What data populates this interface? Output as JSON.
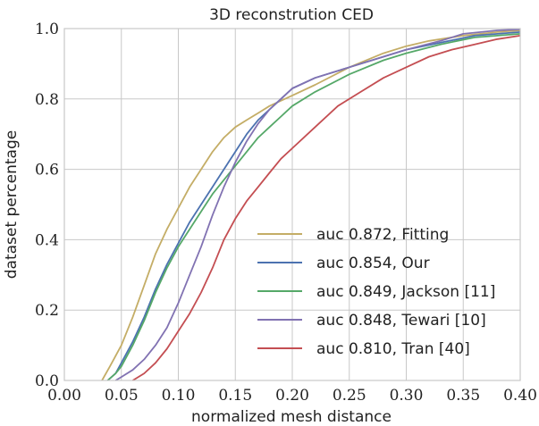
{
  "chart_data": {
    "type": "line",
    "title": "3D reconstrution CED",
    "xlabel": "normalized mesh distance",
    "ylabel": "dataset percentage",
    "xlim": [
      0.0,
      0.4
    ],
    "ylim": [
      0.0,
      1.0
    ],
    "xticks": [
      "0.00",
      "0.05",
      "0.10",
      "0.15",
      "0.20",
      "0.25",
      "0.30",
      "0.35",
      "0.40"
    ],
    "yticks": [
      "0.0",
      "0.2",
      "0.4",
      "0.6",
      "0.8",
      "1.0"
    ],
    "grid": true,
    "legend_position": "lower-right",
    "series": [
      {
        "name": "auc 0.872, Fitting",
        "color": "#c4ad66",
        "x": [
          0.033,
          0.04,
          0.05,
          0.06,
          0.07,
          0.08,
          0.09,
          0.1,
          0.11,
          0.12,
          0.13,
          0.14,
          0.15,
          0.16,
          0.17,
          0.18,
          0.2,
          0.22,
          0.25,
          0.28,
          0.3,
          0.32,
          0.35,
          0.38,
          0.4
        ],
        "y": [
          0.0,
          0.04,
          0.1,
          0.18,
          0.27,
          0.36,
          0.43,
          0.49,
          0.55,
          0.6,
          0.65,
          0.69,
          0.72,
          0.74,
          0.76,
          0.78,
          0.81,
          0.84,
          0.89,
          0.93,
          0.95,
          0.965,
          0.98,
          0.99,
          0.995
        ]
      },
      {
        "name": "auc 0.854, Our",
        "color": "#4c72b0",
        "x": [
          0.038,
          0.045,
          0.05,
          0.06,
          0.07,
          0.08,
          0.09,
          0.1,
          0.11,
          0.12,
          0.13,
          0.14,
          0.15,
          0.16,
          0.17,
          0.18,
          0.19,
          0.2,
          0.22,
          0.25,
          0.28,
          0.3,
          0.33,
          0.36,
          0.4
        ],
        "y": [
          0.0,
          0.02,
          0.05,
          0.11,
          0.18,
          0.26,
          0.33,
          0.39,
          0.45,
          0.5,
          0.55,
          0.6,
          0.65,
          0.7,
          0.74,
          0.77,
          0.8,
          0.83,
          0.86,
          0.89,
          0.92,
          0.94,
          0.96,
          0.98,
          0.99
        ]
      },
      {
        "name": "auc 0.849, Jackson [11]",
        "color": "#55a868",
        "x": [
          0.038,
          0.045,
          0.05,
          0.06,
          0.07,
          0.08,
          0.09,
          0.1,
          0.11,
          0.12,
          0.13,
          0.14,
          0.15,
          0.16,
          0.17,
          0.18,
          0.19,
          0.2,
          0.22,
          0.25,
          0.28,
          0.3,
          0.33,
          0.36,
          0.4
        ],
        "y": [
          0.0,
          0.02,
          0.04,
          0.1,
          0.17,
          0.25,
          0.32,
          0.38,
          0.43,
          0.48,
          0.53,
          0.57,
          0.61,
          0.65,
          0.69,
          0.72,
          0.75,
          0.78,
          0.82,
          0.87,
          0.91,
          0.93,
          0.955,
          0.975,
          0.985
        ]
      },
      {
        "name": "auc 0.848, Tewari [10]",
        "color": "#8172b2",
        "x": [
          0.045,
          0.05,
          0.06,
          0.07,
          0.08,
          0.09,
          0.1,
          0.11,
          0.12,
          0.13,
          0.14,
          0.15,
          0.16,
          0.17,
          0.18,
          0.19,
          0.2,
          0.22,
          0.25,
          0.28,
          0.3,
          0.33,
          0.35,
          0.38,
          0.4
        ],
        "y": [
          0.0,
          0.01,
          0.03,
          0.06,
          0.1,
          0.15,
          0.22,
          0.3,
          0.38,
          0.47,
          0.55,
          0.62,
          0.68,
          0.73,
          0.77,
          0.8,
          0.83,
          0.86,
          0.89,
          0.92,
          0.94,
          0.965,
          0.985,
          0.995,
          0.998
        ]
      },
      {
        "name": "auc 0.810, Tran [40]",
        "color": "#c44e52",
        "x": [
          0.06,
          0.07,
          0.08,
          0.09,
          0.1,
          0.11,
          0.12,
          0.13,
          0.14,
          0.15,
          0.16,
          0.17,
          0.18,
          0.19,
          0.2,
          0.22,
          0.24,
          0.26,
          0.28,
          0.3,
          0.32,
          0.34,
          0.36,
          0.38,
          0.4
        ],
        "y": [
          0.0,
          0.02,
          0.05,
          0.09,
          0.14,
          0.19,
          0.25,
          0.32,
          0.4,
          0.46,
          0.51,
          0.55,
          0.59,
          0.63,
          0.66,
          0.72,
          0.78,
          0.82,
          0.86,
          0.89,
          0.92,
          0.94,
          0.955,
          0.97,
          0.98
        ]
      }
    ]
  }
}
